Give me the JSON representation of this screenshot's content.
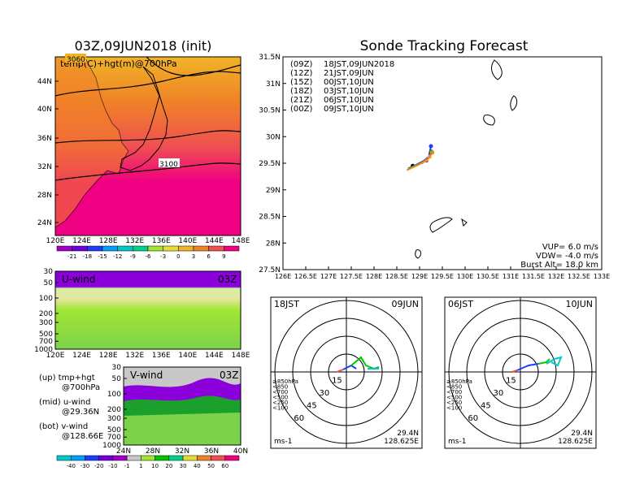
{
  "left_title": "03Z,09JUN2018 (init)",
  "right_title": "Sonde Tracking Forecast",
  "map_left": {
    "label": "temp(C)+hgt(m)@700hPa",
    "contour_labels": [
      "3060",
      "3100"
    ],
    "lat_ticks": [
      "44N",
      "40N",
      "36N",
      "32N",
      "28N",
      "24N"
    ],
    "lon_ticks": [
      "120E",
      "124E",
      "128E",
      "132E",
      "136E",
      "140E",
      "144E",
      "148E"
    ],
    "colorbar": [
      "-21",
      "-18",
      "-15",
      "-12",
      "-9",
      "-6",
      "-3",
      "0",
      "3",
      "6",
      "9"
    ],
    "colorbar_colors": [
      "#a000c8",
      "#6e00dc",
      "#1e3cff",
      "#00a0ff",
      "#00c8c8",
      "#00d28c",
      "#a0e632",
      "#e6dc32",
      "#f0b428",
      "#f08228",
      "#f05050",
      "#f00082"
    ]
  },
  "uwind": {
    "label": "U-wind",
    "time": "03Z",
    "p_ticks": [
      "30",
      "50",
      "100",
      "200",
      "300",
      "500",
      "700",
      "1000"
    ],
    "lon_ticks": [
      "120E",
      "124E",
      "128E",
      "132E",
      "136E",
      "140E",
      "144E",
      "148E"
    ]
  },
  "vwind": {
    "label": "V-wind",
    "time": "03Z",
    "p_ticks": [
      "30",
      "50",
      "100",
      "200",
      "300",
      "500",
      "700",
      "1000"
    ],
    "lat_ticks": [
      "24N",
      "28N",
      "32N",
      "36N",
      "40N"
    ]
  },
  "legend": [
    {
      "a": "(up) tmp+hgt",
      "b": "@700hPa"
    },
    {
      "a": "(mid) u-wind",
      "b": "@29.36N"
    },
    {
      "a": "(bot) v-wind",
      "b": "@128.66E"
    }
  ],
  "bottom_colorbar": [
    "-40",
    "-30",
    "-20",
    "-10",
    "-1",
    "1",
    "10",
    "20",
    "30",
    "40",
    "50",
    "60"
  ],
  "bottom_colorbar_colors": [
    "#00c8c8",
    "#00a0ff",
    "#1e3cff",
    "#6e00dc",
    "#a000c8",
    "#c8c8c8",
    "#a0e632",
    "#00c800",
    "#00d28c",
    "#e6dc32",
    "#f08228",
    "#f05050",
    "#f00082"
  ],
  "track_map": {
    "lat_ticks": [
      "31.5N",
      "31N",
      "30.5N",
      "30N",
      "29.5N",
      "29N",
      "28.5N",
      "28N",
      "27.5N"
    ],
    "lon_ticks": [
      "126E",
      "126.5E",
      "127E",
      "127.5E",
      "128E",
      "128.5E",
      "129E",
      "129.5E",
      "130E",
      "130.5E",
      "131E",
      "131.5E",
      "132E",
      "132.5E",
      "133E"
    ],
    "legend": [
      {
        "code": "(09Z)",
        "time": "18JST,09JUN2018",
        "color": "#000000"
      },
      {
        "code": "(12Z)",
        "time": "21JST,09JUN",
        "color": "#a000c8"
      },
      {
        "code": "(15Z)",
        "time": "00JST,10JUN",
        "color": "#1e3cff"
      },
      {
        "code": "(18Z)",
        "time": "03JST,10JUN",
        "color": "#00b400"
      },
      {
        "code": "(21Z)",
        "time": "06JST,10JUN",
        "color": "#f0b428"
      },
      {
        "code": "(00Z)",
        "time": "09JST,10JUN",
        "color": "#f08228"
      }
    ],
    "params": [
      "VUP= 6.0 m/s",
      "VDW= -4.0 m/s",
      "Burst Alt= 18.0 km"
    ]
  },
  "hodo1": {
    "jst": "18JST",
    "date": "09JUN",
    "rings": [
      "15",
      "30",
      "45",
      "60"
    ],
    "unit": "ms-1",
    "lat": "29.4N",
    "lon": "128.625E",
    "levels": [
      {
        "t": "≥850hPa",
        "c": "#f05050"
      },
      {
        "t": "<850",
        "c": "#f08228"
      },
      {
        "t": "<700",
        "c": "#e6dc32"
      },
      {
        "t": "<500",
        "c": "#00c800"
      },
      {
        "t": "<250",
        "c": "#00c8c8"
      },
      {
        "t": "<100",
        "c": "#1e3cff"
      }
    ]
  },
  "hodo2": {
    "jst": "06JST",
    "date": "10JUN",
    "rings": [
      "15",
      "30",
      "45",
      "60"
    ],
    "unit": "ms-1",
    "lat": "29.4N",
    "lon": "128.625E",
    "levels": [
      {
        "t": "≥850hPa",
        "c": "#f05050"
      },
      {
        "t": "<850",
        "c": "#f08228"
      },
      {
        "t": "<700",
        "c": "#e6dc32"
      },
      {
        "t": "<500",
        "c": "#00c800"
      },
      {
        "t": "<250",
        "c": "#00c8c8"
      },
      {
        "t": "<100",
        "c": "#1e3cff"
      }
    ]
  },
  "chart_data": {
    "type": "line",
    "title": "Sonde Tracking Forecast",
    "xlabel": "",
    "ylabel": "",
    "xlim": [
      126,
      133
    ],
    "ylim": [
      27.5,
      31.5
    ],
    "series": [
      {
        "name": "(09Z)",
        "x": [
          128.75,
          128.8,
          128.85
        ],
        "y": [
          29.4,
          29.42,
          29.45
        ]
      },
      {
        "name": "(12Z)",
        "x": [
          128.75,
          128.9,
          129.05,
          129.15
        ],
        "y": [
          29.4,
          29.45,
          29.5,
          29.55
        ]
      },
      {
        "name": "(15Z)",
        "x": [
          128.75,
          128.95,
          129.1,
          129.2,
          129.25
        ],
        "y": [
          29.4,
          29.48,
          29.55,
          29.62,
          29.82
        ]
      },
      {
        "name": "(18Z)",
        "x": [
          128.75,
          128.95,
          129.1,
          129.22,
          129.26
        ],
        "y": [
          29.4,
          29.47,
          29.54,
          29.6,
          29.72
        ]
      },
      {
        "name": "(21Z)",
        "x": [
          128.72,
          128.9,
          129.05,
          129.18,
          129.22
        ],
        "y": [
          29.37,
          29.44,
          29.5,
          29.56,
          29.62
        ]
      },
      {
        "name": "(00Z)",
        "x": [
          128.72,
          128.92,
          129.08,
          129.2,
          129.28
        ],
        "y": [
          29.37,
          29.45,
          29.52,
          29.6,
          29.7
        ]
      }
    ]
  }
}
